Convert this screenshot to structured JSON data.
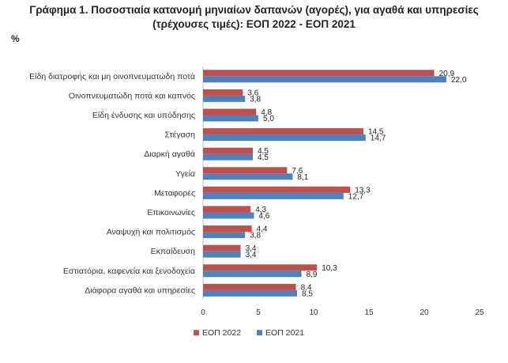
{
  "title_line1": "Γράφημα 1. Ποσοστιαία κατανομή μηνιαίων δαπανών (αγορές), για αγαθά και υπηρεσίες",
  "title_line2": "(τρέχουσες τιμές): ΕΟΠ 2022 - ΕΟΠ 2021",
  "unit_label": "%",
  "chart_data": {
    "type": "bar",
    "orientation": "horizontal",
    "categories": [
      "Είδη διατροφής και μη οινοπνευματώδη ποτά",
      "Οινοπνευματώδη ποτά και καπνός",
      "Είδη ένδυσης και υπόδησης",
      "Στέγαση",
      "Διαρκή αγαθά",
      "Υγεία",
      "Μεταφορές",
      "Επικοινωνίες",
      "Αναψυχή και πολιτισμός",
      "Εκπαίδευση",
      "Εστιατόρια, καφενεία  και ξενοδοχεία",
      "Διάφορα αγαθά και υπηρεσίες"
    ],
    "series": [
      {
        "name": "ΕΟΠ 2022",
        "color": "#c0504d",
        "values": [
          20.9,
          3.6,
          4.8,
          14.5,
          4.5,
          7.6,
          13.3,
          4.3,
          4.4,
          3.4,
          10.3,
          8.4
        ],
        "labels": [
          "20,9",
          "3,6",
          "4,8",
          "14,5",
          "4,5",
          "7,6",
          "13,3",
          "4,3",
          "4,4",
          "3,4",
          "10,3",
          "8,4"
        ]
      },
      {
        "name": "ΕΟΠ 2021",
        "color": "#4f81bd",
        "values": [
          22.0,
          3.8,
          5.0,
          14.7,
          4.5,
          8.1,
          12.7,
          4.6,
          3.8,
          3.4,
          8.9,
          8.5
        ],
        "labels": [
          "22,0",
          "3,8",
          "5,0",
          "14,7",
          "4,5",
          "8,1",
          "12,7",
          "4,6",
          "3,8",
          "3,4",
          "8,9",
          "8,5"
        ]
      }
    ],
    "xlim": [
      0,
      25
    ],
    "xticks": [
      0,
      5,
      10,
      15,
      20,
      25
    ],
    "xtick_labels": [
      "0",
      "5",
      "10",
      "15",
      "20",
      "25"
    ],
    "grid": false,
    "legend_position": "bottom"
  }
}
